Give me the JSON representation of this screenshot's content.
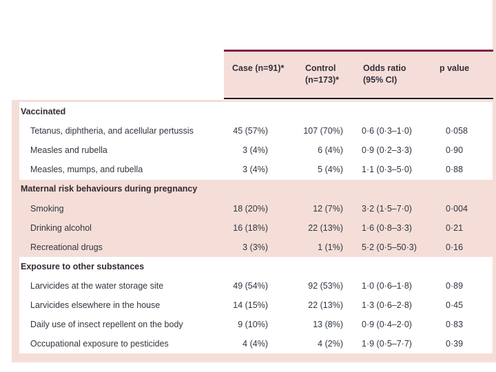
{
  "colors": {
    "page_background": "#ffffff",
    "pink_shading": "#f5ded8",
    "header_top_rule_maroon": "#801f42",
    "header_bottom_rule_black": "#1a1a1a",
    "header_text": "#322f3a",
    "body_text": "#2e3640"
  },
  "table": {
    "header": {
      "case": [
        "Case (n=91)*"
      ],
      "control": [
        "Control",
        "(n=173)*"
      ],
      "odds_ratio": [
        "Odds ratio",
        "(95% CI)"
      ],
      "p_value": [
        "p value"
      ]
    },
    "groups": [
      {
        "label": "Vaccinated",
        "shaded": false,
        "rows": [
          {
            "label": "Tetanus, diphtheria, and acellular pertussis",
            "case": "45 (57%)",
            "control": "107 (70%)",
            "odds_ratio": "0·6 (0·3–1·0)",
            "p_value": "0·058"
          },
          {
            "label": "Measles and rubella",
            "case": "3 (4%)",
            "control": "6 (4%)",
            "odds_ratio": "0·9 (0·2–3·3)",
            "p_value": "0·90"
          },
          {
            "label": "Measles, mumps, and rubella",
            "case": "3 (4%)",
            "control": "5 (4%)",
            "odds_ratio": "1·1 (0·3–5·0)",
            "p_value": "0·88"
          }
        ]
      },
      {
        "label": "Maternal risk behaviours during pregnancy",
        "shaded": true,
        "rows": [
          {
            "label": "Smoking",
            "case": "18 (20%)",
            "control": "12 (7%)",
            "odds_ratio": "3·2 (1·5–7·0)",
            "p_value": "0·004"
          },
          {
            "label": "Drinking alcohol",
            "case": "16 (18%)",
            "control": "22 (13%)",
            "odds_ratio": "1·6 (0·8–3·3)",
            "p_value": "0·21"
          },
          {
            "label": "Recreational drugs",
            "case": "3 (3%)",
            "control": "1 (1%)",
            "odds_ratio": "5·2 (0·5–50·3)",
            "p_value": "0·16"
          }
        ]
      },
      {
        "label": "Exposure to other substances",
        "shaded": false,
        "rows": [
          {
            "label": "Larvicides at the water storage site",
            "case": "49 (54%)",
            "control": "92 (53%)",
            "odds_ratio": "1·0 (0·6–1·8)",
            "p_value": "0·89"
          },
          {
            "label": "Larvicides elsewhere in the house",
            "case": "14 (15%)",
            "control": "22 (13%)",
            "odds_ratio": "1·3 (0·6–2·8)",
            "p_value": "0·45"
          },
          {
            "label": "Daily use of insect repellent on the body",
            "case": "9 (10%)",
            "control": "13 (8%)",
            "odds_ratio": "0·9 (0·4–2·0)",
            "p_value": "0·83"
          },
          {
            "label": "Occupational exposure to pesticides",
            "case": "4 (4%)",
            "control": "4 (2%)",
            "odds_ratio": "1·9 (0·5–7·7)",
            "p_value": "0·39"
          }
        ]
      }
    ]
  }
}
